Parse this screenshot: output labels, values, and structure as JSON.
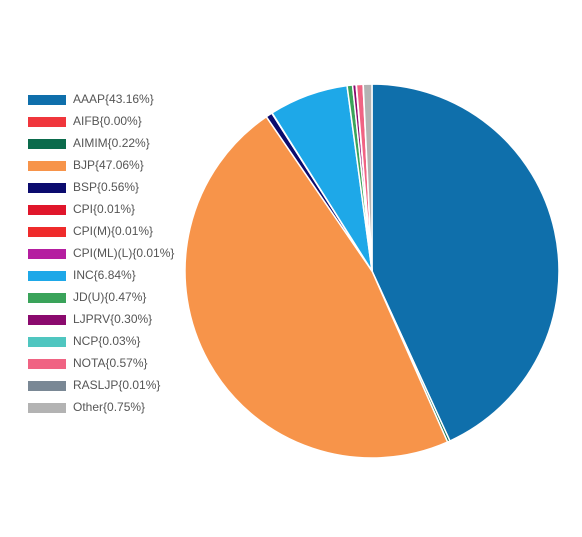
{
  "chart_data": {
    "type": "pie",
    "categories": [
      "AAAP",
      "AIFB",
      "AIMIM",
      "BJP",
      "BSP",
      "CPI",
      "CPI(M)",
      "CPI(ML)(L)",
      "INC",
      "JD(U)",
      "LJPRV",
      "NCP",
      "NOTA",
      "RASLJP",
      "Other"
    ],
    "values": [
      43.16,
      0.0,
      0.22,
      47.06,
      0.56,
      0.01,
      0.01,
      0.01,
      6.84,
      0.47,
      0.3,
      0.03,
      0.57,
      0.01,
      0.75
    ],
    "value_labels": [
      "{43.16%}",
      "{0.00%}",
      "{0.22%}",
      "{47.06%}",
      "{0.56%}",
      "{0.01%}",
      "{0.01%}",
      "{0.01%}",
      "{6.84%}",
      "{0.47%}",
      "{0.30%}",
      "{0.03%}",
      "{0.57%}",
      "{0.01%}",
      "{0.75%}"
    ],
    "colors": [
      "#0f6fab",
      "#f0363c",
      "#0b6b4c",
      "#f7944a",
      "#0b0b6e",
      "#e0162b",
      "#ef2b2b",
      "#b51ea0",
      "#1ea8e8",
      "#3aa35a",
      "#8b0a6e",
      "#4fc6c0",
      "#f06383",
      "#7a8895",
      "#b3b3b3"
    ],
    "legend": "left"
  }
}
